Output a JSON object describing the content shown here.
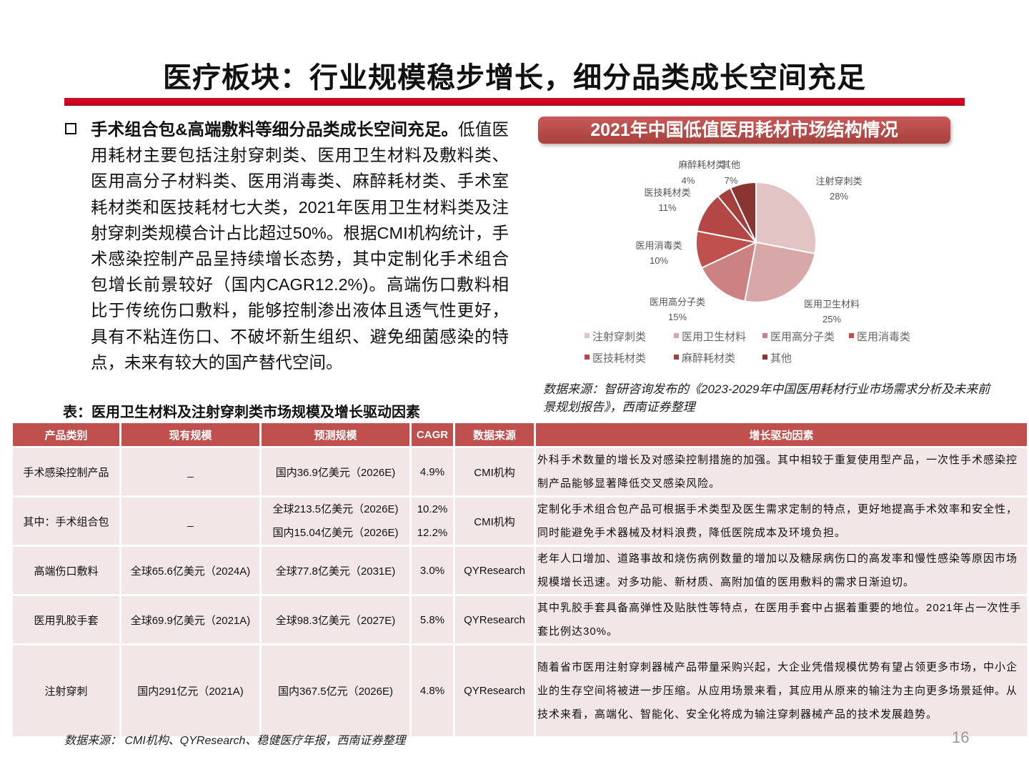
{
  "title": "医疗板块：行业规模稳步增长，细分品类成长空间充足",
  "paragraph": {
    "bold": "手术组合包&高端敷料等细分品类成长空间充足。",
    "text": "低值医用耗材主要包括注射穿刺类、医用卫生材料及敷料类、医用高分子材料类、医用消毒类、麻醉耗材类、手术室耗材类和医技耗材七大类，2021年医用卫生材料类及注射穿刺类规模合计占比超过50%。根据CMI机构统计，手术感染控制产品呈持续增长态势，其中定制化手术组合包增长前景较好（国内CAGR12.2%)。高端伤口敷料相比于传统伤口敷料，能够控制渗出液体且透气性更好，具有不粘连伤口、不破坏新生组织、避免细菌感染的特点，未来有较大的国产替代空间。"
  },
  "chart_data": {
    "type": "pie",
    "title": "2021年中国低值医用耗材市场结构情况",
    "categories": [
      "注射穿刺类",
      "医用卫生材料",
      "医用高分子类",
      "医用消毒类",
      "医技耗材类",
      "麻醉耗材类",
      "其他"
    ],
    "values": [
      28,
      25,
      15,
      10,
      11,
      4,
      7
    ],
    "labels": [
      "28%",
      "25%",
      "15%",
      "10%",
      "11%",
      "4%",
      "7%"
    ],
    "colors": [
      "#e3c4c5",
      "#d8a7a8",
      "#cc8283",
      "#c0504d",
      "#b24746",
      "#a33f3d",
      "#8b3533"
    ],
    "legend": "bottom"
  },
  "chart_source": "数据来源：智研咨询发布的《2023-2029年中国医用耗材行业市场需求分析及未来前景规划报告》，西南证券整理",
  "table": {
    "caption": "表：医用卫生材料及注射穿刺类市场规模及增长驱动因素",
    "headers": [
      "产品类别",
      "现有规模",
      "预测规模",
      "CAGR",
      "数据来源",
      "增长驱动因素"
    ],
    "rows": [
      {
        "cat": "手术感染控制产品",
        "cur": "_",
        "fc": "国内36.9亿美元（2026E)",
        "cagr": "4.9%",
        "src": "CMI机构",
        "drv": "外科手术数量的增长及对感染控制措施的加强。其中相较于重复使用型产品，一次性手术感染控制产品能够显著降低交叉感染风险。"
      },
      {
        "cat": "其中：手术组合包",
        "cur": "_",
        "fc": "全球213.5亿美元（2026E)",
        "fc2": "国内15.04亿美元（2026E)",
        "cagr": "10.2%",
        "cagr2": "12.2%",
        "src": "CMI机构",
        "drv": "定制化手术组合包产品可根据手术类型及医生需求定制的特点，更好地提高手术效率和安全性，同时能避免手术器械及材料浪费，降低医院成本及环境负担。"
      },
      {
        "cat": "高端伤口敷料",
        "cur": "全球65.6亿美元（2024A)",
        "fc": "全球77.8亿美元（2031E)",
        "cagr": "3.0%",
        "src": "QYResearch",
        "drv": "老年人口增加、道路事故和烧伤病例数量的增加以及糖尿病伤口的高发率和慢性感染等原因市场规模增长迅速。对多功能、新材质、高附加值的医用敷料的需求日渐迫切。"
      },
      {
        "cat": "医用乳胶手套",
        "cur": "全球69.9亿美元（2021A)",
        "fc": "全球98.3亿美元（2027E)",
        "cagr": "5.8%",
        "src": "QYResearch",
        "drv": "其中乳胶手套具备高弹性及贴肤性等特点，在医用手套中占据着重要的地位。2021年占一次性手套比例达30%。"
      },
      {
        "cat": "注射穿刺",
        "cur": "国内291亿元（2021A)",
        "fc": "国内367.5亿元（2026E)",
        "cagr": "4.8%",
        "src": "QYResearch",
        "drv": "随着省市医用注射穿刺器械产品带量采购兴起，大企业凭借规模优势有望占领更多市场，中小企业的生存空间将被进一步压缩。从应用场景来看，其应用从原来的输注为主向更多场景延伸。从技术来看，高端化、智能化、安全化将成为输注穿刺器械产品的技术发展趋势。"
      }
    ]
  },
  "table_source": "数据来源： CMI机构、QYResearch、稳健医疗年报，西南证券整理",
  "page_number": "16"
}
